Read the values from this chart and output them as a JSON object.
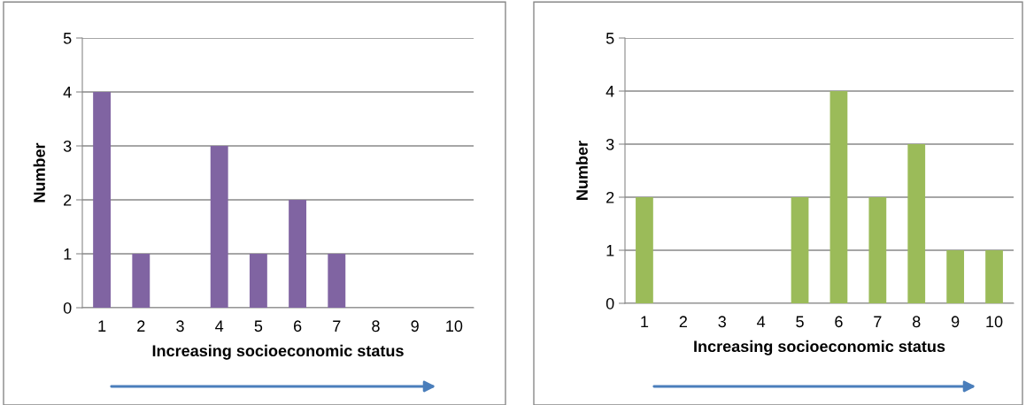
{
  "chart_data": [
    {
      "type": "bar",
      "categories": [
        "1",
        "2",
        "3",
        "4",
        "5",
        "6",
        "7",
        "8",
        "9",
        "10"
      ],
      "values": [
        4,
        1,
        0,
        3,
        1,
        2,
        1,
        0,
        0,
        0
      ],
      "color": "#8064a2",
      "xlabel": "Increasing socioeconomic status",
      "ylabel": "Number",
      "ylim": [
        0,
        5
      ],
      "yticks": [
        0,
        1,
        2,
        3,
        4,
        5
      ],
      "grid": "y"
    },
    {
      "type": "bar",
      "categories": [
        "1",
        "2",
        "3",
        "4",
        "5",
        "6",
        "7",
        "8",
        "9",
        "10"
      ],
      "values": [
        2,
        0,
        0,
        0,
        2,
        4,
        2,
        3,
        1,
        1
      ],
      "color": "#9bbb59",
      "xlabel": "Increasing socioeconomic status",
      "ylabel": "Number",
      "ylim": [
        0,
        5
      ],
      "yticks": [
        0,
        1,
        2,
        3,
        4,
        5
      ],
      "grid": "y"
    }
  ]
}
